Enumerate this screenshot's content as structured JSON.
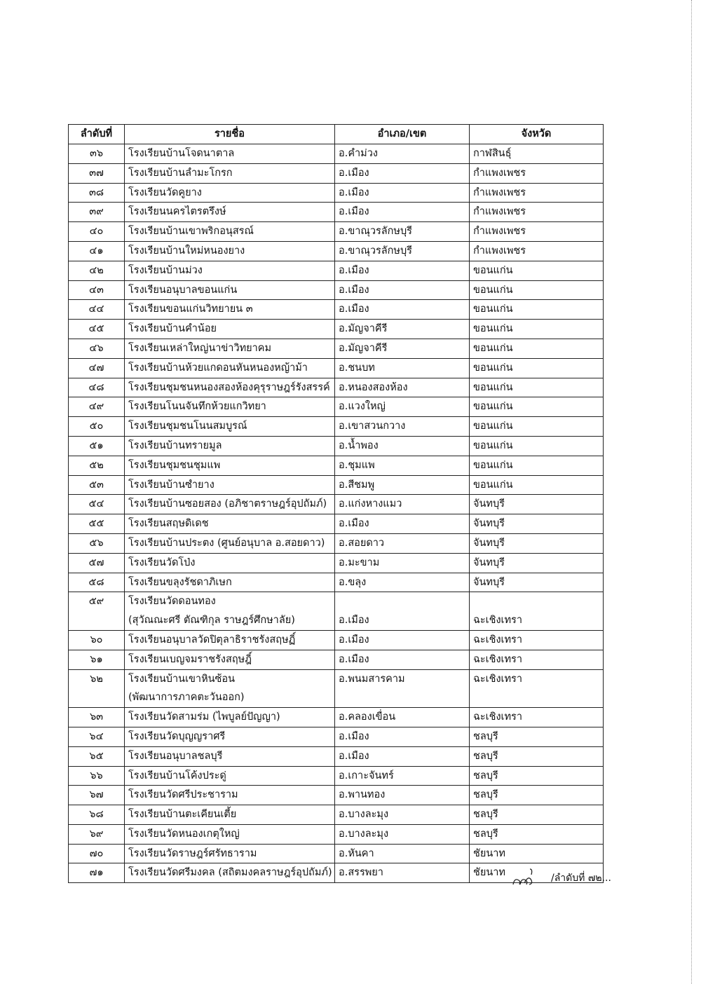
{
  "table": {
    "headers": [
      "ลำดับที่",
      "รายชื่อ",
      "อำเภอ/เขต",
      "จังหวัด"
    ],
    "rows": [
      {
        "no": "๓๖",
        "name": [
          "โรงเรียนบ้านโจดนาตาล"
        ],
        "district": [
          "อ.คำม่วง"
        ],
        "province": [
          "กาฬสินธุ์"
        ]
      },
      {
        "no": "๓๗",
        "name": [
          "โรงเรียนบ้านลำมะโกรก"
        ],
        "district": [
          "อ.เมือง"
        ],
        "province": [
          "กำแพงเพชร"
        ]
      },
      {
        "no": "๓๘",
        "name": [
          "โรงเรียนวัดคูยาง"
        ],
        "district": [
          "อ.เมือง"
        ],
        "province": [
          "กำแพงเพชร"
        ]
      },
      {
        "no": "๓๙",
        "name": [
          "โรงเรียนนครไตรตรึงษ์"
        ],
        "district": [
          "อ.เมือง"
        ],
        "province": [
          "กำแพงเพชร"
        ]
      },
      {
        "no": "๔๐",
        "name": [
          "โรงเรียนบ้านเขาพริกอนุสรณ์"
        ],
        "district": [
          "อ.ขาณุวรลักษบุรี"
        ],
        "province": [
          "กำแพงเพชร"
        ]
      },
      {
        "no": "๔๑",
        "name": [
          "โรงเรียนบ้านใหม่หนองยาง"
        ],
        "district": [
          "อ.ขาณุวรลักษบุรี"
        ],
        "province": [
          "กำแพงเพชร"
        ]
      },
      {
        "no": "๔๒",
        "name": [
          "โรงเรียนบ้านม่วง"
        ],
        "district": [
          "อ.เมือง"
        ],
        "province": [
          "ขอนแก่น"
        ]
      },
      {
        "no": "๔๓",
        "name": [
          "โรงเรียนอนุบาลขอนแก่น"
        ],
        "district": [
          "อ.เมือง"
        ],
        "province": [
          "ขอนแก่น"
        ]
      },
      {
        "no": "๔๔",
        "name": [
          "โรงเรียนขอนแก่นวิทยายน ๓"
        ],
        "district": [
          "อ.เมือง"
        ],
        "province": [
          "ขอนแก่น"
        ]
      },
      {
        "no": "๔๕",
        "name": [
          "โรงเรียนบ้านคำน้อย"
        ],
        "district": [
          "อ.มัญจาคีรี"
        ],
        "province": [
          "ขอนแก่น"
        ]
      },
      {
        "no": "๔๖",
        "name": [
          "โรงเรียนเหล่าใหญ่นาข่าวิทยาคม"
        ],
        "district": [
          "อ.มัญจาคีรี"
        ],
        "province": [
          "ขอนแก่น"
        ]
      },
      {
        "no": "๔๗",
        "name": [
          "โรงเรียนบ้านห้วยแกดอนหันหนองหญ้าม้า"
        ],
        "district": [
          "อ.ชนบท"
        ],
        "province": [
          "ขอนแก่น"
        ]
      },
      {
        "no": "๔๘",
        "name": [
          "โรงเรียนชุมชนหนองสองห้องคุรุราษฎร์รังสรรค์"
        ],
        "district": [
          "อ.หนองสองห้อง"
        ],
        "province": [
          "ขอนแก่น"
        ]
      },
      {
        "no": "๔๙",
        "name": [
          "โรงเรียนโนนจันทึกห้วยแกวิทยา"
        ],
        "district": [
          "อ.แวงใหญ่"
        ],
        "province": [
          "ขอนแก่น"
        ]
      },
      {
        "no": "๕๐",
        "name": [
          "โรงเรียนชุมชนโนนสมบูรณ์"
        ],
        "district": [
          "อ.เขาสวนกวาง"
        ],
        "province": [
          "ขอนแก่น"
        ]
      },
      {
        "no": "๕๑",
        "name": [
          "โรงเรียนบ้านทรายมูล"
        ],
        "district": [
          "อ.น้ำพอง"
        ],
        "province": [
          "ขอนแก่น"
        ]
      },
      {
        "no": "๕๒",
        "name": [
          "โรงเรียนชุมชนชุมแพ"
        ],
        "district": [
          "อ.ชุมแพ"
        ],
        "province": [
          "ขอนแก่น"
        ]
      },
      {
        "no": "๕๓",
        "name": [
          "โรงเรียนบ้านซำยาง"
        ],
        "district": [
          "อ.สีชมพู"
        ],
        "province": [
          "ขอนแก่น"
        ]
      },
      {
        "no": "๕๔",
        "name": [
          "โรงเรียนบ้านซอยสอง (อภิชาตราษฎร์อุปถัมภ์)"
        ],
        "district": [
          "อ.แก่งหางแมว"
        ],
        "province": [
          "จันทบุรี"
        ]
      },
      {
        "no": "๕๕",
        "name": [
          "โรงเรียนสฤษดิเดช"
        ],
        "district": [
          "อ.เมือง"
        ],
        "province": [
          "จันทบุรี"
        ]
      },
      {
        "no": "๕๖",
        "name": [
          "โรงเรียนบ้านประตง (ศูนย์อนุบาล อ.สอยดาว)"
        ],
        "district": [
          "อ.สอยดาว"
        ],
        "province": [
          "จันทบุรี"
        ]
      },
      {
        "no": "๕๗",
        "name": [
          "โรงเรียนวัดโป่ง"
        ],
        "district": [
          "อ.มะขาม"
        ],
        "province": [
          "จันทบุรี"
        ]
      },
      {
        "no": "๕๘",
        "name": [
          "โรงเรียนขลุงรัชดาภิเษก"
        ],
        "district": [
          "อ.ขลุง"
        ],
        "province": [
          "จันทบุรี"
        ]
      },
      {
        "no": "๕๙",
        "name": [
          "โรงเรียนวัดดอนทอง",
          "(สุวัณณะศรี ตัณฑิกุล ราษฎร์ศึกษาลัย)"
        ],
        "district": [
          "",
          "อ.เมือง"
        ],
        "province": [
          "",
          "ฉะเชิงเทรา"
        ]
      },
      {
        "no": "๖๐",
        "name": [
          "โรงเรียนอนุบาลวัดปิตุลาธิราชรังสฤษฏิ์"
        ],
        "district": [
          "อ.เมือง"
        ],
        "province": [
          "ฉะเชิงเทรา"
        ]
      },
      {
        "no": "๖๑",
        "name": [
          "โรงเรียนเบญจมราชรังสฤษฎิ์"
        ],
        "district": [
          "อ.เมือง"
        ],
        "province": [
          "ฉะเชิงเทรา"
        ]
      },
      {
        "no": "๖๒",
        "name": [
          "โรงเรียนบ้านเขาหินซ้อน",
          "(พัฒนาการภาคตะวันออก)"
        ],
        "district": [
          "อ.พนมสารคาม",
          ""
        ],
        "province": [
          "ฉะเชิงเทรา",
          ""
        ]
      },
      {
        "no": "๖๓",
        "name": [
          "โรงเรียนวัดสามร่ม (ไพบูลย์ปัญญา)"
        ],
        "district": [
          "อ.คลองเขื่อน"
        ],
        "province": [
          "ฉะเชิงเทรา"
        ]
      },
      {
        "no": "๖๔",
        "name": [
          "โรงเรียนวัดบุญญราศรี"
        ],
        "district": [
          "อ.เมือง"
        ],
        "province": [
          "ชลบุรี"
        ]
      },
      {
        "no": "๖๕",
        "name": [
          "โรงเรียนอนุบาลชลบุรี"
        ],
        "district": [
          "อ.เมือง"
        ],
        "province": [
          "ชลบุรี"
        ]
      },
      {
        "no": "๖๖",
        "name": [
          "โรงเรียนบ้านโค้งประดู่"
        ],
        "district": [
          "อ.เกาะจันทร์"
        ],
        "province": [
          "ชลบุรี"
        ]
      },
      {
        "no": "๖๗",
        "name": [
          "โรงเรียนวัดศรีประชาราม"
        ],
        "district": [
          "อ.พานทอง"
        ],
        "province": [
          "ชลบุรี"
        ]
      },
      {
        "no": "๖๘",
        "name": [
          "โรงเรียนบ้านตะเคียนเตี้ย"
        ],
        "district": [
          "อ.บางละมุง"
        ],
        "province": [
          "ชลบุรี"
        ]
      },
      {
        "no": "๖๙",
        "name": [
          "โรงเรียนวัดหนองเกตุใหญ่"
        ],
        "district": [
          "อ.บางละมุง"
        ],
        "province": [
          "ชลบุรี"
        ]
      },
      {
        "no": "๗๐",
        "name": [
          "โรงเรียนวัดราษฎร์ศรัทธาราม"
        ],
        "district": [
          "อ.หันคา"
        ],
        "province": [
          "ชัยนาท"
        ]
      },
      {
        "no": "๗๑",
        "name": [
          "โรงเรียนวัดศรีมงคล (สถิตมงคลราษฎร์อุปถัมภ์)"
        ],
        "district": [
          "อ.สรรพยา"
        ],
        "province": [
          "ชัยนาท"
        ]
      }
    ]
  },
  "footer": {
    "initials": "๓๓",
    "continuation": "/ลำดับที่ ๗๒..."
  }
}
